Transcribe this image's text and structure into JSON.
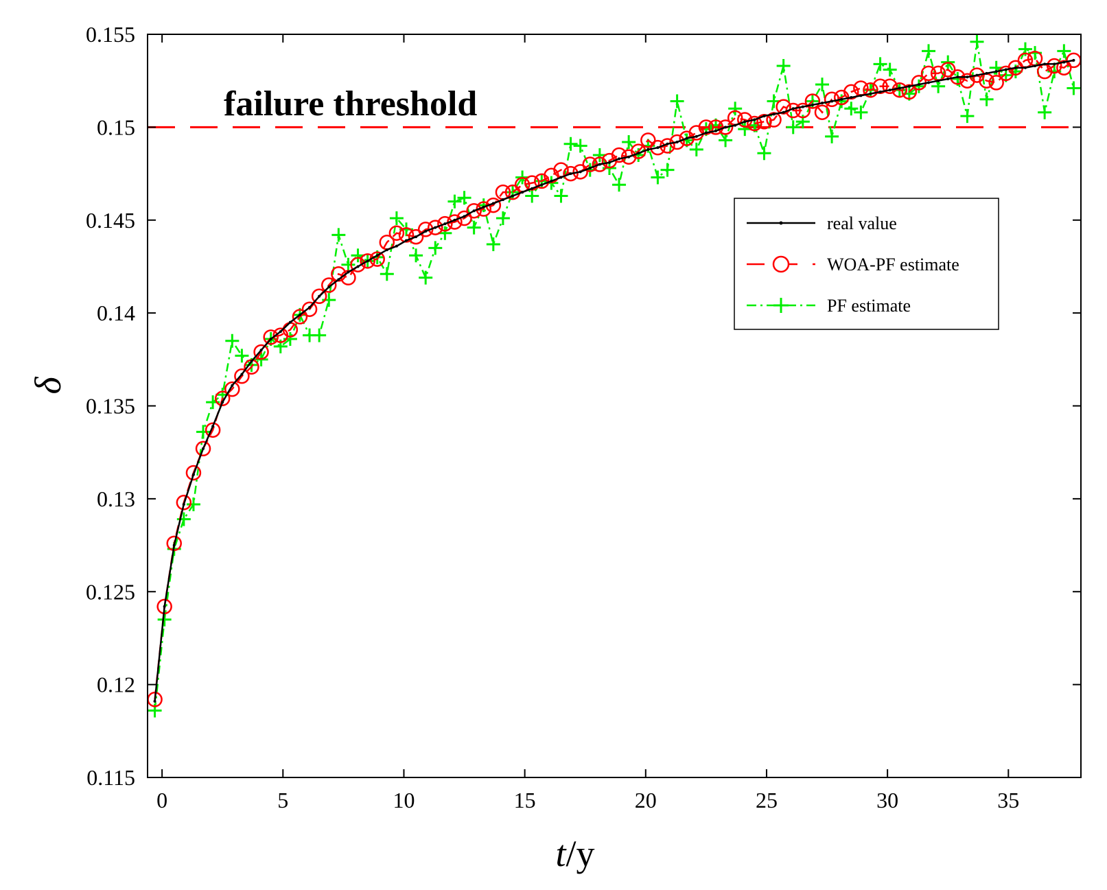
{
  "chart_data": {
    "type": "line",
    "xlabel": "t/y",
    "xlabel_parts": {
      "italic": "t",
      "rest": "/y"
    },
    "ylabel": "δ",
    "xlim": [
      -0.6,
      38.0
    ],
    "ylim": [
      0.115,
      0.155
    ],
    "x_ticks": [
      0,
      5,
      10,
      15,
      20,
      25,
      30,
      35
    ],
    "x_tick_labels": [
      "0",
      "5",
      "10",
      "15",
      "20",
      "25",
      "30",
      "35"
    ],
    "y_ticks": [
      0.115,
      0.12,
      0.125,
      0.13,
      0.135,
      0.14,
      0.145,
      0.15,
      0.155
    ],
    "y_tick_labels": [
      "0.115",
      "0.12",
      "0.125",
      "0.13",
      "0.135",
      "0.14",
      "0.145",
      "0.15",
      "0.155"
    ],
    "grid": false,
    "legend_position": "top-right",
    "threshold": {
      "value": 0.15,
      "label": "failure threshold",
      "color": "#ff0000"
    },
    "x": [
      -0.3,
      0.1,
      0.5,
      0.9,
      1.3,
      1.7,
      2.1,
      2.5,
      2.9,
      3.3,
      3.7,
      4.1,
      4.5,
      4.9,
      5.3,
      5.7,
      6.1,
      6.5,
      6.9,
      7.3,
      7.7,
      8.1,
      8.5,
      8.9,
      9.3,
      9.7,
      10.1,
      10.5,
      10.9,
      11.3,
      11.7,
      12.1,
      12.5,
      12.9,
      13.3,
      13.7,
      14.1,
      14.5,
      14.9,
      15.3,
      15.7,
      16.1,
      16.5,
      16.9,
      17.3,
      17.7,
      18.1,
      18.5,
      18.9,
      19.3,
      19.7,
      20.1,
      20.5,
      20.9,
      21.3,
      21.7,
      22.1,
      22.5,
      22.9,
      23.3,
      23.7,
      24.1,
      24.5,
      24.9,
      25.3,
      25.7,
      26.1,
      26.5,
      26.9,
      27.3,
      27.7,
      28.1,
      28.5,
      28.9,
      29.3,
      29.7,
      30.1,
      30.5,
      30.9,
      31.3,
      31.7,
      32.1,
      32.5,
      32.9,
      33.3,
      33.7,
      34.1,
      34.5,
      34.9,
      35.3,
      35.7,
      36.1,
      36.5,
      36.9,
      37.3,
      37.7
    ],
    "series": [
      {
        "name": "real value",
        "color": "#000000",
        "style": "solid-dot",
        "values": [
          0.1191,
          0.1242,
          0.1275,
          0.1297,
          0.1313,
          0.1327,
          0.1339,
          0.1352,
          0.1361,
          0.1367,
          0.1374,
          0.138,
          0.1386,
          0.139,
          0.1395,
          0.1399,
          0.1403,
          0.1409,
          0.1414,
          0.1418,
          0.1422,
          0.1425,
          0.1428,
          0.1431,
          0.1434,
          0.1436,
          0.1439,
          0.1441,
          0.1444,
          0.1446,
          0.1448,
          0.145,
          0.1452,
          0.1455,
          0.1457,
          0.1459,
          0.1461,
          0.1463,
          0.1465,
          0.1467,
          0.1469,
          0.1471,
          0.1473,
          0.1475,
          0.1476,
          0.1478,
          0.148,
          0.1481,
          0.1483,
          0.1484,
          0.1486,
          0.1488,
          0.1489,
          0.1491,
          0.1492,
          0.1494,
          0.1495,
          0.1497,
          0.1498,
          0.15,
          0.1501,
          0.1503,
          0.1504,
          0.1506,
          0.1507,
          0.1508,
          0.151,
          0.1511,
          0.1512,
          0.1513,
          0.1514,
          0.1515,
          0.1516,
          0.1517,
          0.1518,
          0.1519,
          0.152,
          0.1521,
          0.1522,
          0.1523,
          0.1524,
          0.1525,
          0.1526,
          0.1527,
          0.1527,
          0.1528,
          0.1529,
          0.153,
          0.1531,
          0.1532,
          0.1532,
          0.1533,
          0.1534,
          0.1534,
          0.1535,
          0.1536
        ]
      },
      {
        "name": "WOA-PF estimate",
        "color": "#ff0000",
        "style": "dashed-circle",
        "values": [
          0.1192,
          0.1242,
          0.1276,
          0.1298,
          0.1314,
          0.1327,
          0.1337,
          0.1354,
          0.1359,
          0.1366,
          0.1371,
          0.1379,
          0.1387,
          0.1388,
          0.1391,
          0.1398,
          0.1402,
          0.1409,
          0.1415,
          0.1421,
          0.1419,
          0.1426,
          0.1428,
          0.1429,
          0.1438,
          0.1443,
          0.1442,
          0.1441,
          0.1445,
          0.1446,
          0.1448,
          0.1449,
          0.1451,
          0.1455,
          0.1456,
          0.1458,
          0.1465,
          0.1465,
          0.1469,
          0.147,
          0.1471,
          0.1474,
          0.1477,
          0.1475,
          0.1476,
          0.148,
          0.148,
          0.1482,
          0.1485,
          0.1484,
          0.1487,
          0.1493,
          0.1489,
          0.149,
          0.1492,
          0.1494,
          0.1497,
          0.15,
          0.15,
          0.15,
          0.1505,
          0.1504,
          0.1502,
          0.1503,
          0.1504,
          0.1511,
          0.1509,
          0.1509,
          0.1514,
          0.1508,
          0.1515,
          0.1516,
          0.1519,
          0.1521,
          0.152,
          0.1522,
          0.1522,
          0.152,
          0.1519,
          0.1524,
          0.1529,
          0.1529,
          0.1531,
          0.1527,
          0.1525,
          0.1528,
          0.1525,
          0.1524,
          0.1529,
          0.1532,
          0.1536,
          0.1537,
          0.153,
          0.1533,
          0.1532,
          0.1536
        ]
      },
      {
        "name": "PF estimate",
        "color": "#00ee00",
        "style": "dashdot-plus",
        "values": [
          0.1186,
          0.1235,
          0.1273,
          0.1289,
          0.1297,
          0.1336,
          0.1352,
          0.1356,
          0.1385,
          0.1377,
          0.1372,
          0.1375,
          0.1386,
          0.1382,
          0.1386,
          0.1399,
          0.1388,
          0.1388,
          0.1407,
          0.1442,
          0.1426,
          0.1431,
          0.1428,
          0.143,
          0.1421,
          0.1451,
          0.1445,
          0.1431,
          0.1419,
          0.1435,
          0.1443,
          0.146,
          0.1462,
          0.1446,
          0.1458,
          0.1437,
          0.1451,
          0.1465,
          0.1473,
          0.1463,
          0.1471,
          0.147,
          0.1463,
          0.1491,
          0.149,
          0.1477,
          0.1485,
          0.1478,
          0.1469,
          0.1492,
          0.1485,
          0.149,
          0.1473,
          0.1477,
          0.1514,
          0.1493,
          0.1488,
          0.1499,
          0.1501,
          0.1493,
          0.151,
          0.1499,
          0.1501,
          0.1486,
          0.1514,
          0.1533,
          0.15,
          0.1503,
          0.1514,
          0.1523,
          0.1495,
          0.1514,
          0.151,
          0.1508,
          0.152,
          0.1534,
          0.1531,
          0.152,
          0.1518,
          0.1522,
          0.1541,
          0.1522,
          0.1535,
          0.1526,
          0.1506,
          0.1546,
          0.1515,
          0.1532,
          0.1528,
          0.153,
          0.1542,
          0.154,
          0.1508,
          0.153,
          0.1541,
          0.1521
        ]
      }
    ]
  }
}
